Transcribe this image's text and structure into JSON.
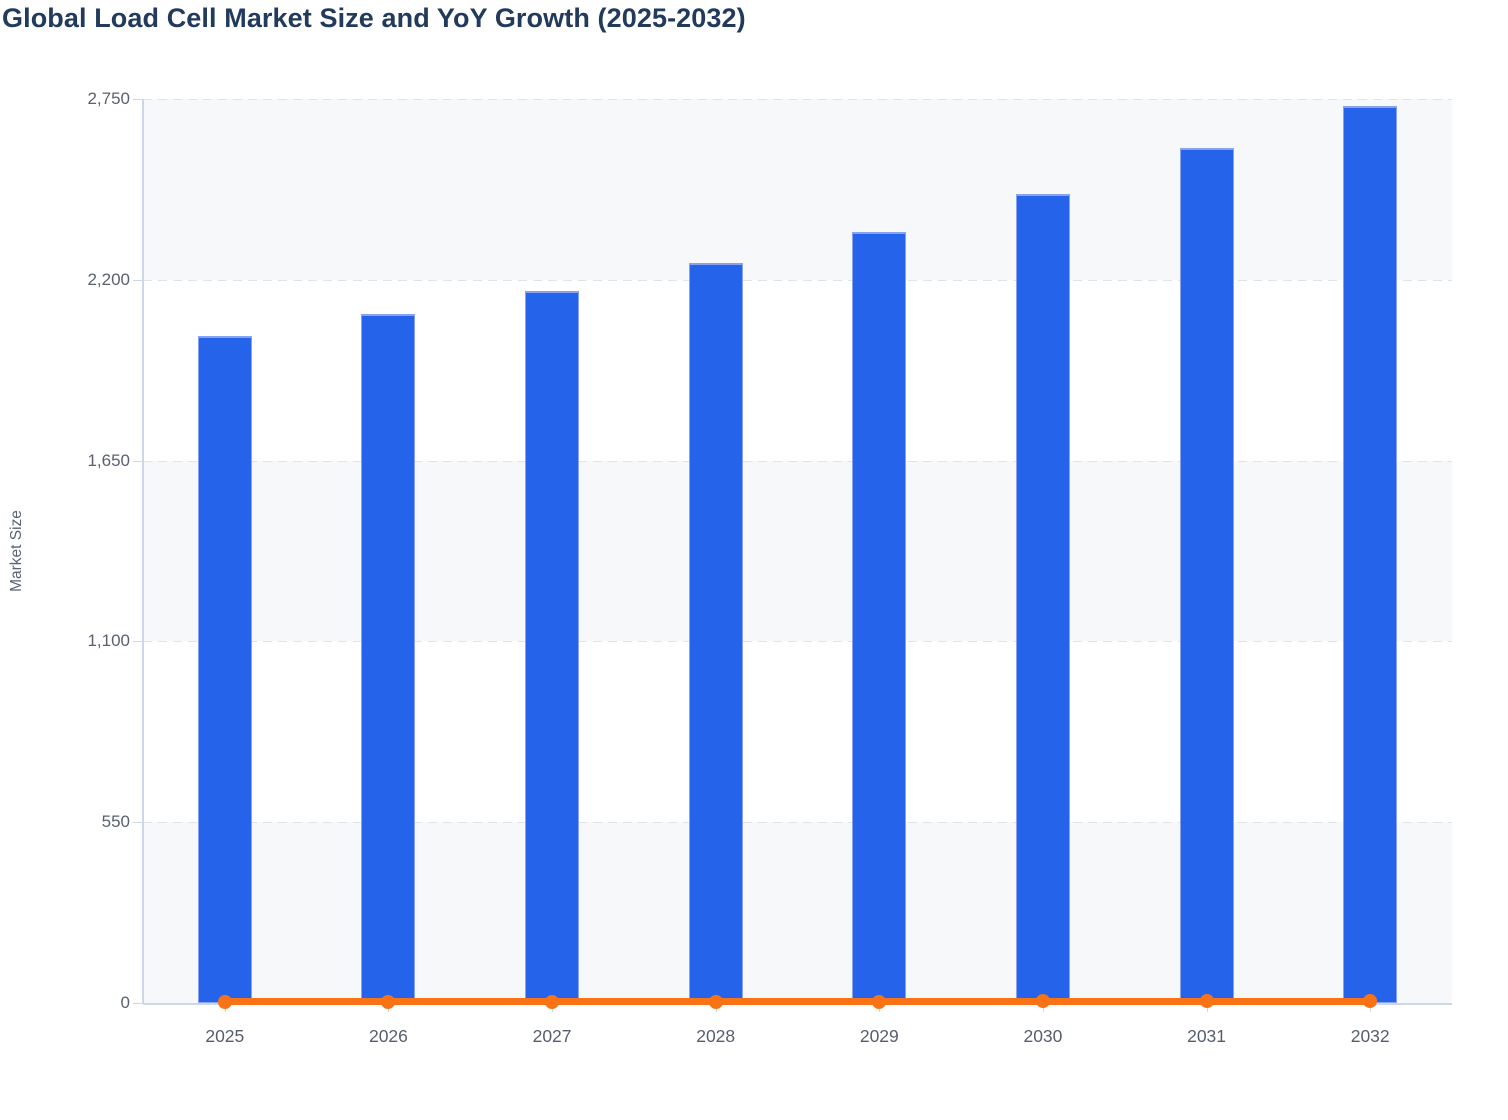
{
  "chart": {
    "title": "Global Load Cell Market Size and YoY Growth (2025-2032)",
    "y_axis": {
      "title": "Market Size",
      "tick_labels": [
        "0",
        "550",
        "1,100",
        "1,650",
        "2,200",
        "2,750"
      ]
    },
    "x_axis": {
      "categories": [
        "2025",
        "2026",
        "2027",
        "2028",
        "2029",
        "2030",
        "2031",
        "2032"
      ]
    },
    "colors": {
      "bar_fill": "#2563eb",
      "bar_border": "#87a2ef",
      "line": "#f97316",
      "title_text": "#223a5c",
      "axis_line": "#ccd7ec",
      "grid_dash": "#e0e3e8",
      "band_fill": "#f7f8fa",
      "tick_label_text": "#59616f"
    }
  },
  "chart_data": {
    "type": "bar",
    "subtype": "bar+line combo",
    "title": "Global Load Cell Market Size and YoY Growth (2025-2032)",
    "categories": [
      "2025",
      "2026",
      "2027",
      "2028",
      "2029",
      "2030",
      "2031",
      "2032"
    ],
    "series": [
      {
        "name": "Market Size",
        "type": "bar",
        "color": "#2563eb",
        "values": [
          2028,
          2095,
          2165,
          2250,
          2345,
          2460,
          2600,
          2730
        ],
        "values_estimated_from_pixels": true
      },
      {
        "name": "YoY Growth",
        "type": "line",
        "color": "#f97316",
        "values": [
          3.3,
          3.3,
          3.3,
          3.9,
          4.2,
          4.9,
          5.7,
          5.0
        ],
        "values_estimated_from_pixels": true,
        "note": "Plotted against the same Market Size axis, so the line renders flat along the 0 baseline with a round marker at each year."
      }
    ],
    "xlabel": "",
    "ylabel": "Market Size",
    "ylim": [
      0,
      2750
    ],
    "yticks": [
      0,
      550,
      1100,
      1650,
      2200,
      2750
    ],
    "grid": "horizontal dashed gridlines",
    "plot_bands": "alternating horizontal bands (#f7f8fa / #ffffff) between gridlines",
    "legend_position": "none"
  }
}
